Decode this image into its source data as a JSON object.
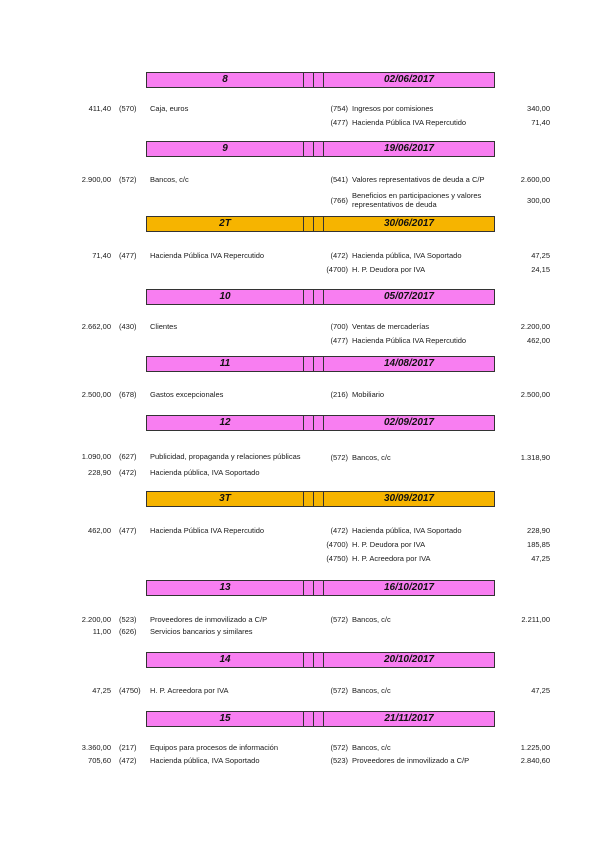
{
  "entries": [
    {
      "number": "8",
      "date": "02/06/2017",
      "color": "#f87ef1",
      "debits": [
        {
          "amount": "411,40",
          "code": "(570)",
          "account": "Caja, euros"
        }
      ],
      "credits": [
        {
          "code": "(754)",
          "account": "Ingresos por comisiones",
          "amount": "340,00"
        },
        {
          "code": "(477)",
          "account": "Hacienda Pública IVA Repercutido",
          "amount": "71,40"
        }
      ]
    },
    {
      "number": "9",
      "date": "19/06/2017",
      "color": "#f87ef1",
      "debits": [
        {
          "amount": "2.900,00",
          "code": "(572)",
          "account": "Bancos, c/c"
        }
      ],
      "credits": [
        {
          "code": "(541)",
          "account": "Valores representativos de deuda a C/P",
          "amount": "2.600,00"
        },
        {
          "code": "(766)",
          "account": "Beneficios en participaciones y valores representativos de deuda",
          "amount": "300,00"
        }
      ]
    },
    {
      "number": "2T",
      "date": "30/06/2017",
      "color": "#f6b400",
      "debits": [
        {
          "amount": "71,40",
          "code": "(477)",
          "account": "Hacienda Pública IVA Repercutido"
        }
      ],
      "credits": [
        {
          "code": "(472)",
          "account": "Hacienda pública, IVA Soportado",
          "amount": "47,25"
        },
        {
          "code": "(4700)",
          "account": "H. P. Deudora por IVA",
          "amount": "24,15"
        }
      ]
    },
    {
      "number": "10",
      "date": "05/07/2017",
      "color": "#f87ef1",
      "debits": [
        {
          "amount": "2.662,00",
          "code": "(430)",
          "account": "Clientes"
        }
      ],
      "credits": [
        {
          "code": "(700)",
          "account": "Ventas de mercaderías",
          "amount": "2.200,00"
        },
        {
          "code": "(477)",
          "account": "Hacienda Pública IVA Repercutido",
          "amount": "462,00"
        }
      ]
    },
    {
      "number": "11",
      "date": "14/08/2017",
      "color": "#f87ef1",
      "debits": [
        {
          "amount": "2.500,00",
          "code": "(678)",
          "account": "Gastos excepcionales"
        }
      ],
      "credits": [
        {
          "code": "(216)",
          "account": "Mobiliario",
          "amount": "2.500,00"
        }
      ]
    },
    {
      "number": "12",
      "date": "02/09/2017",
      "color": "#f87ef1",
      "debits": [
        {
          "amount": "1.090,00",
          "code": "(627)",
          "account": "Publicidad, propaganda y relaciones públicas"
        },
        {
          "amount": "228,90",
          "code": "(472)",
          "account": "Hacienda pública, IVA Soportado"
        }
      ],
      "credits": [
        {
          "code": "(572)",
          "account": "Bancos, c/c",
          "amount": "1.318,90"
        }
      ]
    },
    {
      "number": "3T",
      "date": "30/09/2017",
      "color": "#f6b400",
      "debits": [
        {
          "amount": "462,00",
          "code": "(477)",
          "account": "Hacienda Pública IVA Repercutido"
        }
      ],
      "credits": [
        {
          "code": "(472)",
          "account": "Hacienda pública, IVA Soportado",
          "amount": "228,90"
        },
        {
          "code": "(4700)",
          "account": "H. P. Deudora por IVA",
          "amount": "185,85"
        },
        {
          "code": "(4750)",
          "account": "H. P. Acreedora por IVA",
          "amount": "47,25"
        }
      ]
    },
    {
      "number": "13",
      "date": "16/10/2017",
      "color": "#f87ef1",
      "debits": [
        {
          "amount": "2.200,00",
          "code": "(523)",
          "account": "Proveedores de inmovilizado a C/P"
        },
        {
          "amount": "11,00",
          "code": "(626)",
          "account": "Servicios bancarios y similares"
        }
      ],
      "credits": [
        {
          "code": "(572)",
          "account": "Bancos, c/c",
          "amount": "2.211,00"
        }
      ]
    },
    {
      "number": "14",
      "date": "20/10/2017",
      "color": "#f87ef1",
      "debits": [
        {
          "amount": "47,25",
          "code": "(4750)",
          "account": "H. P. Acreedora por IVA"
        }
      ],
      "credits": [
        {
          "code": "(572)",
          "account": "Bancos, c/c",
          "amount": "47,25"
        }
      ]
    },
    {
      "number": "15",
      "date": "21/11/2017",
      "color": "#f87ef1",
      "debits": [
        {
          "amount": "3.360,00",
          "code": "(217)",
          "account": "Equipos para procesos de información"
        },
        {
          "amount": "705,60",
          "code": "(472)",
          "account": "Hacienda pública, IVA Soportado"
        }
      ],
      "credits": [
        {
          "code": "(572)",
          "account": "Bancos, c/c",
          "amount": "1.225,00"
        },
        {
          "code": "(523)",
          "account": "Proveedores de inmovilizado a C/P",
          "amount": "2.840,60"
        }
      ]
    }
  ]
}
